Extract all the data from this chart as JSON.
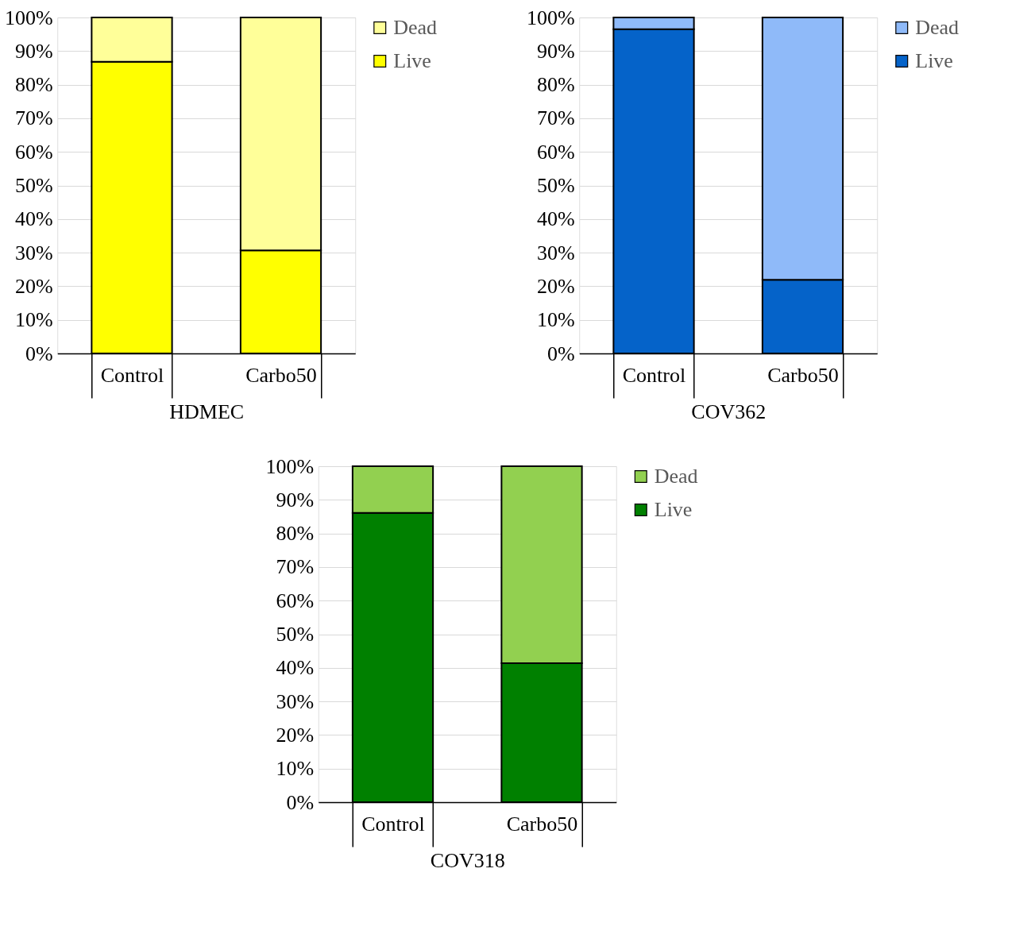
{
  "chart_data": [
    {
      "type": "bar",
      "stacked": true,
      "xlabel": "HDMEC",
      "categories": [
        "Control",
        "Carbo50"
      ],
      "ylim": [
        0,
        100
      ],
      "yticks": [
        {
          "value": 0,
          "label": "0%"
        },
        {
          "value": 10,
          "label": "10%"
        },
        {
          "value": 20,
          "label": "20%"
        },
        {
          "value": 30,
          "label": "30%"
        },
        {
          "value": 40,
          "label": "40%"
        },
        {
          "value": 50,
          "label": "50%"
        },
        {
          "value": 60,
          "label": "60%"
        },
        {
          "value": 70,
          "label": "70%"
        },
        {
          "value": 80,
          "label": "80%"
        },
        {
          "value": 90,
          "label": "90%"
        },
        {
          "value": 100,
          "label": "100%"
        }
      ],
      "grid": "y",
      "legend": "right",
      "series": [
        {
          "name": "Live",
          "color": "#ffff00",
          "values": [
            86.8,
            30.7
          ]
        },
        {
          "name": "Dead",
          "color": "#ffff99",
          "values": [
            13.2,
            69.3
          ]
        }
      ]
    },
    {
      "type": "bar",
      "stacked": true,
      "xlabel": "COV362",
      "categories": [
        "Control",
        "Carbo50"
      ],
      "ylim": [
        0,
        100
      ],
      "yticks": [
        {
          "value": 0,
          "label": "0%"
        },
        {
          "value": 10,
          "label": "10%"
        },
        {
          "value": 20,
          "label": "20%"
        },
        {
          "value": 30,
          "label": "30%"
        },
        {
          "value": 40,
          "label": "40%"
        },
        {
          "value": 50,
          "label": "50%"
        },
        {
          "value": 60,
          "label": "60%"
        },
        {
          "value": 70,
          "label": "70%"
        },
        {
          "value": 80,
          "label": "80%"
        },
        {
          "value": 90,
          "label": "90%"
        },
        {
          "value": 100,
          "label": "100%"
        }
      ],
      "grid": "y",
      "legend": "right",
      "series": [
        {
          "name": "Live",
          "color": "#0563c9",
          "values": [
            96.5,
            21.9
          ]
        },
        {
          "name": "Dead",
          "color": "#8fbaf9",
          "values": [
            3.5,
            78.1
          ]
        }
      ]
    },
    {
      "type": "bar",
      "stacked": true,
      "xlabel": "COV318",
      "categories": [
        "Control",
        "Carbo50"
      ],
      "ylim": [
        0,
        100
      ],
      "yticks": [
        {
          "value": 0,
          "label": "0%"
        },
        {
          "value": 10,
          "label": "10%"
        },
        {
          "value": 20,
          "label": "20%"
        },
        {
          "value": 30,
          "label": "30%"
        },
        {
          "value": 40,
          "label": "40%"
        },
        {
          "value": 50,
          "label": "50%"
        },
        {
          "value": 60,
          "label": "60%"
        },
        {
          "value": 70,
          "label": "70%"
        },
        {
          "value": 80,
          "label": "80%"
        },
        {
          "value": 90,
          "label": "90%"
        },
        {
          "value": 100,
          "label": "100%"
        }
      ],
      "grid": "y",
      "legend": "right",
      "series": [
        {
          "name": "Live",
          "color": "#008000",
          "values": [
            86.1,
            41.4
          ]
        },
        {
          "name": "Dead",
          "color": "#92d050",
          "values": [
            13.9,
            58.6
          ]
        }
      ]
    }
  ]
}
